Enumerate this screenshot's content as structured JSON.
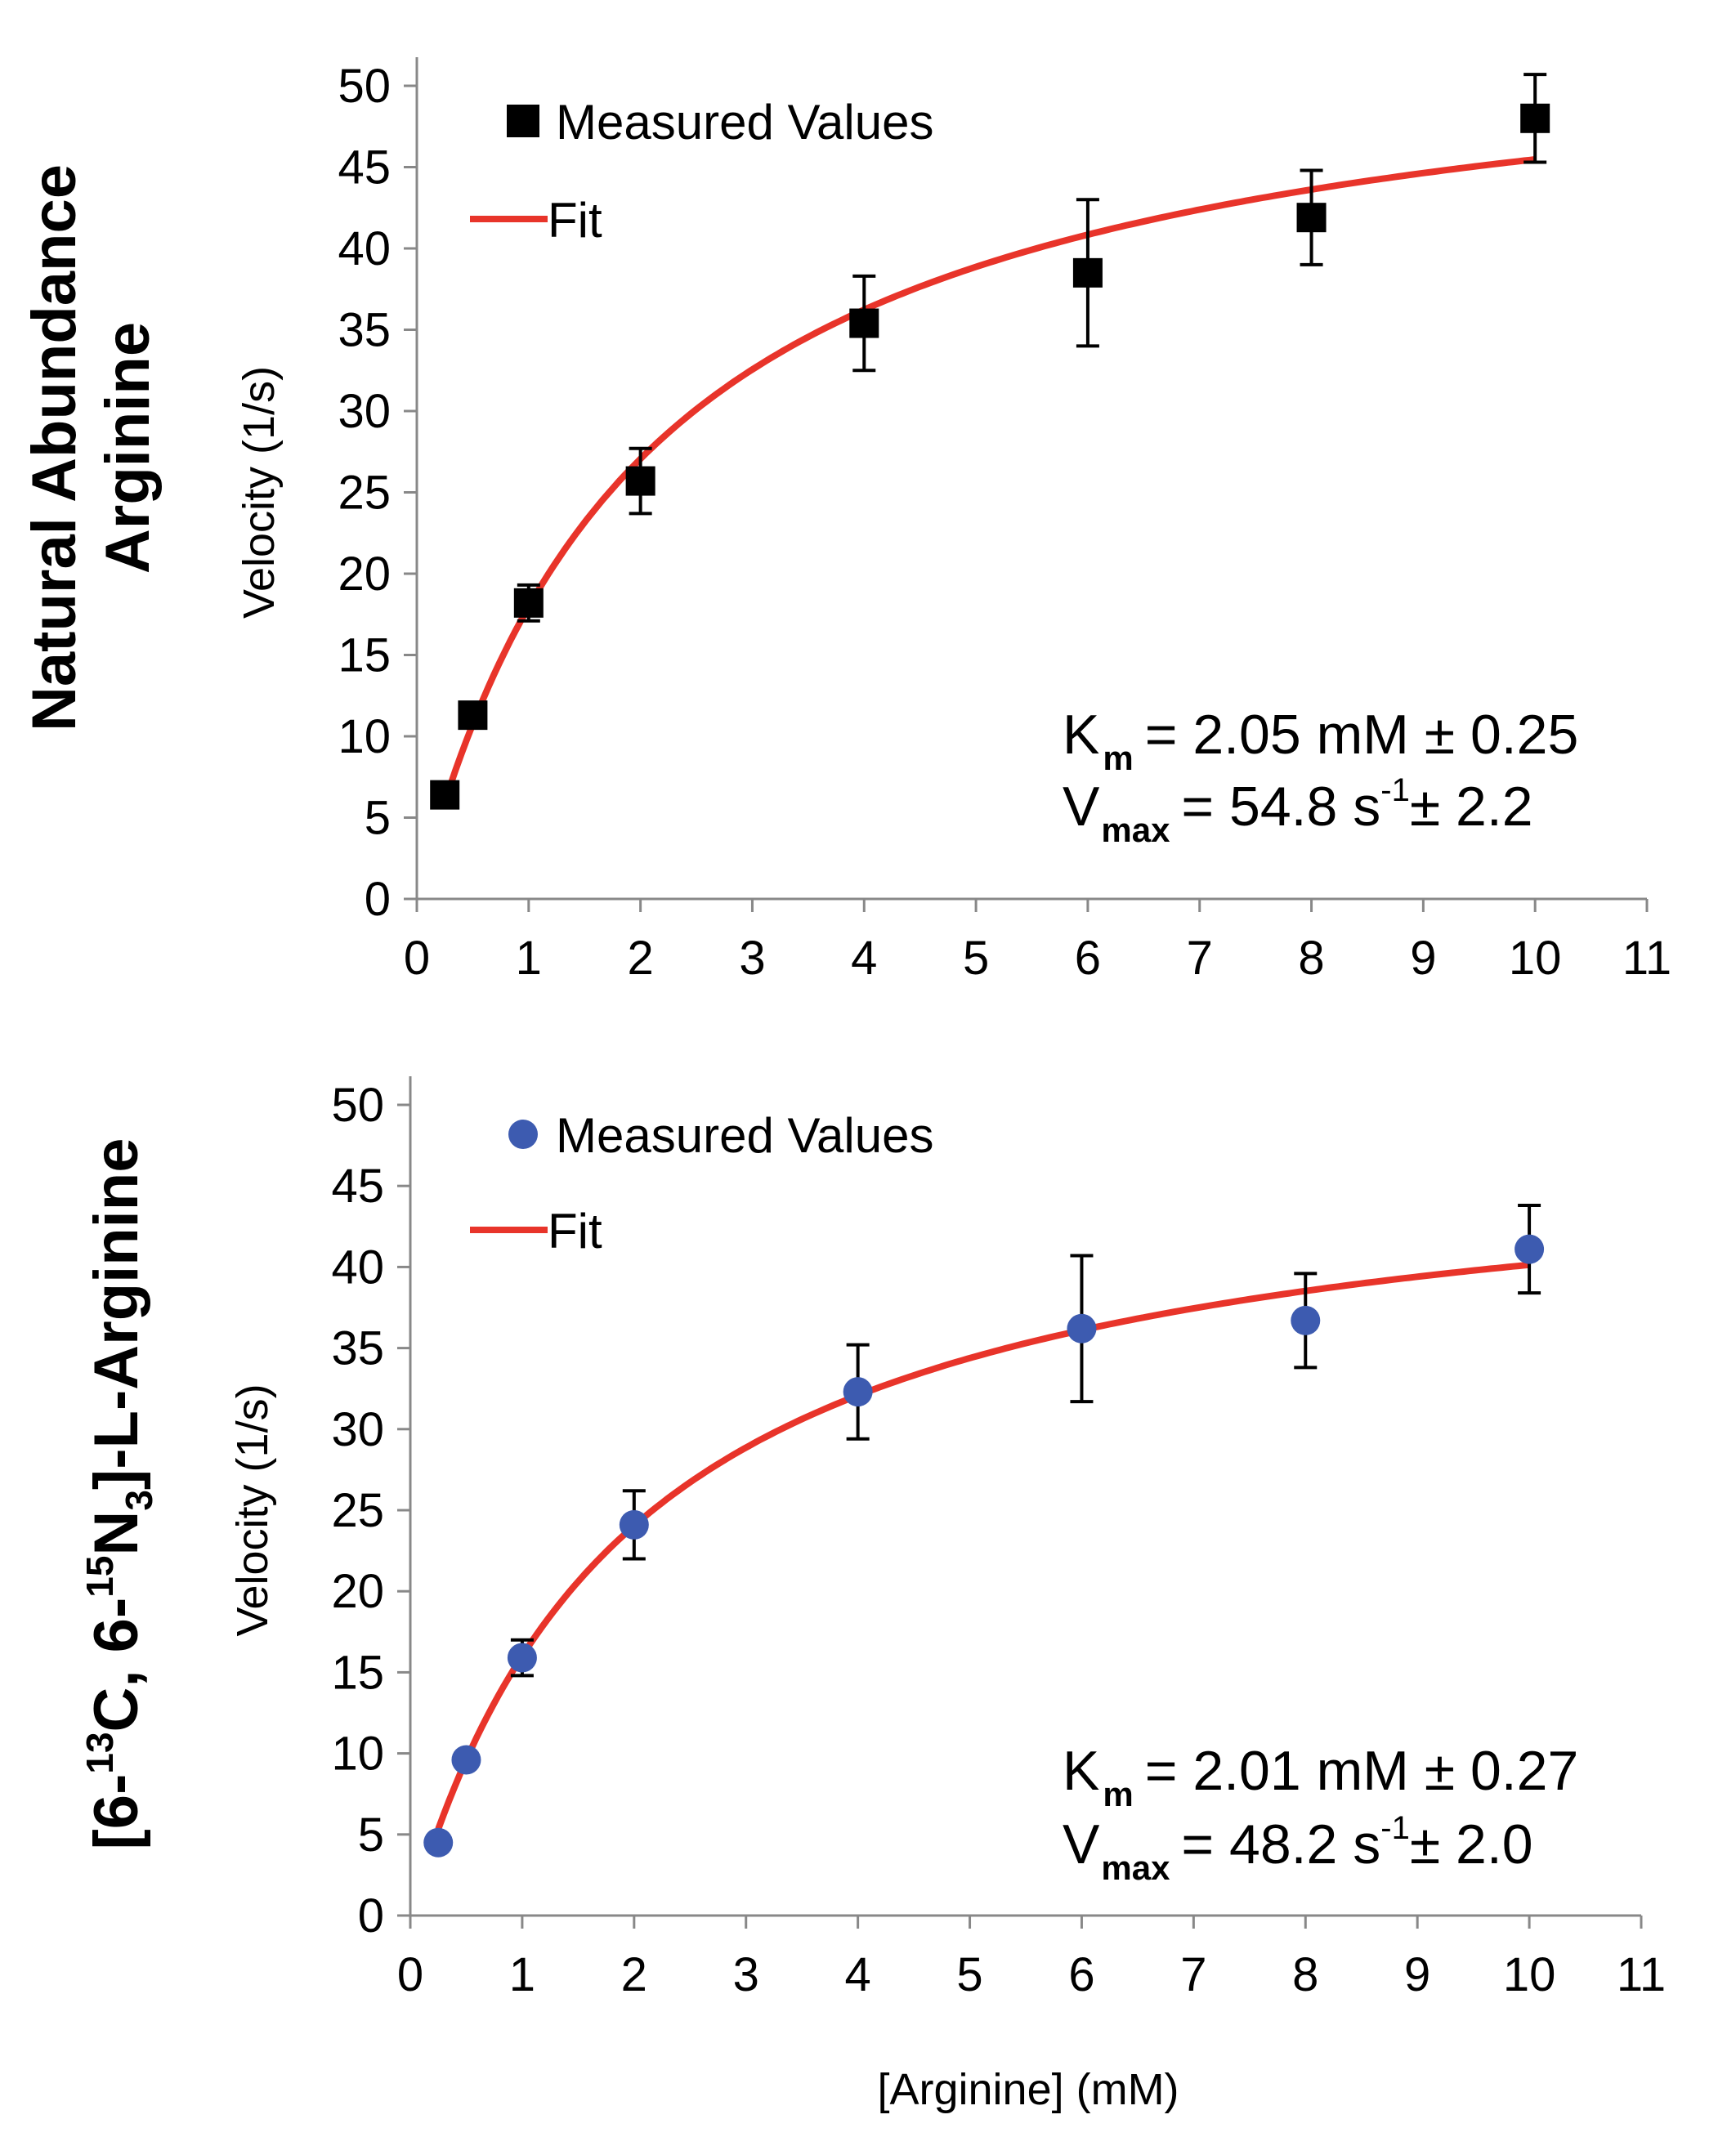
{
  "chart_data": [
    {
      "type": "scatter",
      "row_label": "Natural Abundance\nArginine",
      "ylabel": "Velocity (1/s)",
      "xlabel": "",
      "xlim": [
        0,
        11
      ],
      "ylim": [
        0,
        50
      ],
      "x_ticks": [
        0,
        1,
        2,
        3,
        4,
        5,
        6,
        7,
        8,
        9,
        10,
        11
      ],
      "y_ticks": [
        0,
        5,
        10,
        15,
        20,
        25,
        30,
        35,
        40,
        45,
        50
      ],
      "marker": "square",
      "marker_color": "#000000",
      "fit_color": "#e8342a",
      "legend": {
        "points_label": "Measured Values",
        "fit_label": "Fit"
      },
      "series": [
        {
          "name": "Measured Values",
          "x": [
            0.25,
            0.5,
            1,
            2,
            4,
            6,
            8,
            10
          ],
          "y": [
            6.4,
            11.3,
            18.2,
            25.7,
            35.4,
            38.5,
            41.9,
            48.0
          ],
          "err": [
            0.0,
            0.0,
            1.1,
            2.0,
            2.9,
            4.5,
            2.9,
            2.7
          ]
        }
      ],
      "fit": {
        "model": "michaelis-menten",
        "Km": 2.05,
        "Vmax": 54.8
      },
      "annotation": {
        "km_symbol": "K",
        "km_sub": "m",
        "km_value": "= 2.05 mM ± 0.25",
        "vmax_symbol": "V",
        "vmax_sub": "max",
        "vmax_value": "= 54.8 s",
        "vmax_sup": "-1",
        "vmax_err": "± 2.2"
      }
    },
    {
      "type": "scatter",
      "row_label": "[6-13C, 6-15N3]-L-Arginine",
      "ylabel": "Velocity (1/s)",
      "xlabel": "[Arginine] (mM)",
      "xlim": [
        0,
        11
      ],
      "ylim": [
        0,
        50
      ],
      "x_ticks": [
        0,
        1,
        2,
        3,
        4,
        5,
        6,
        7,
        8,
        9,
        10,
        11
      ],
      "y_ticks": [
        0,
        5,
        10,
        15,
        20,
        25,
        30,
        35,
        40,
        45,
        50
      ],
      "marker": "circle",
      "marker_color": "#3d5bb0",
      "fit_color": "#e8342a",
      "legend": {
        "points_label": "Measured Values",
        "fit_label": "Fit"
      },
      "series": [
        {
          "name": "Measured Values",
          "x": [
            0.25,
            0.5,
            1,
            2,
            4,
            6,
            8,
            10
          ],
          "y": [
            4.5,
            9.6,
            15.9,
            24.1,
            32.3,
            36.2,
            36.7,
            41.1
          ],
          "err": [
            0.0,
            0.0,
            1.1,
            2.1,
            2.9,
            4.5,
            2.9,
            2.7
          ]
        }
      ],
      "fit": {
        "model": "michaelis-menten",
        "Km": 2.01,
        "Vmax": 48.2
      },
      "annotation": {
        "km_symbol": "K",
        "km_sub": "m",
        "km_value": "= 2.01 mM ± 0.27",
        "vmax_symbol": "V",
        "vmax_sub": "max",
        "vmax_value": "= 48.2 s",
        "vmax_sup": "-1",
        "vmax_err": "± 2.0"
      }
    }
  ],
  "row_labels": {
    "top_line1": "Natural Abundance",
    "top_line2": "Arginine",
    "bottom_open": "[6-",
    "bottom_sup1": "13",
    "bottom_mid1": "C,  6-",
    "bottom_sup2": "15",
    "bottom_mid2": "N",
    "bottom_sub": "3",
    "bottom_close": "]-L-Arginine"
  }
}
